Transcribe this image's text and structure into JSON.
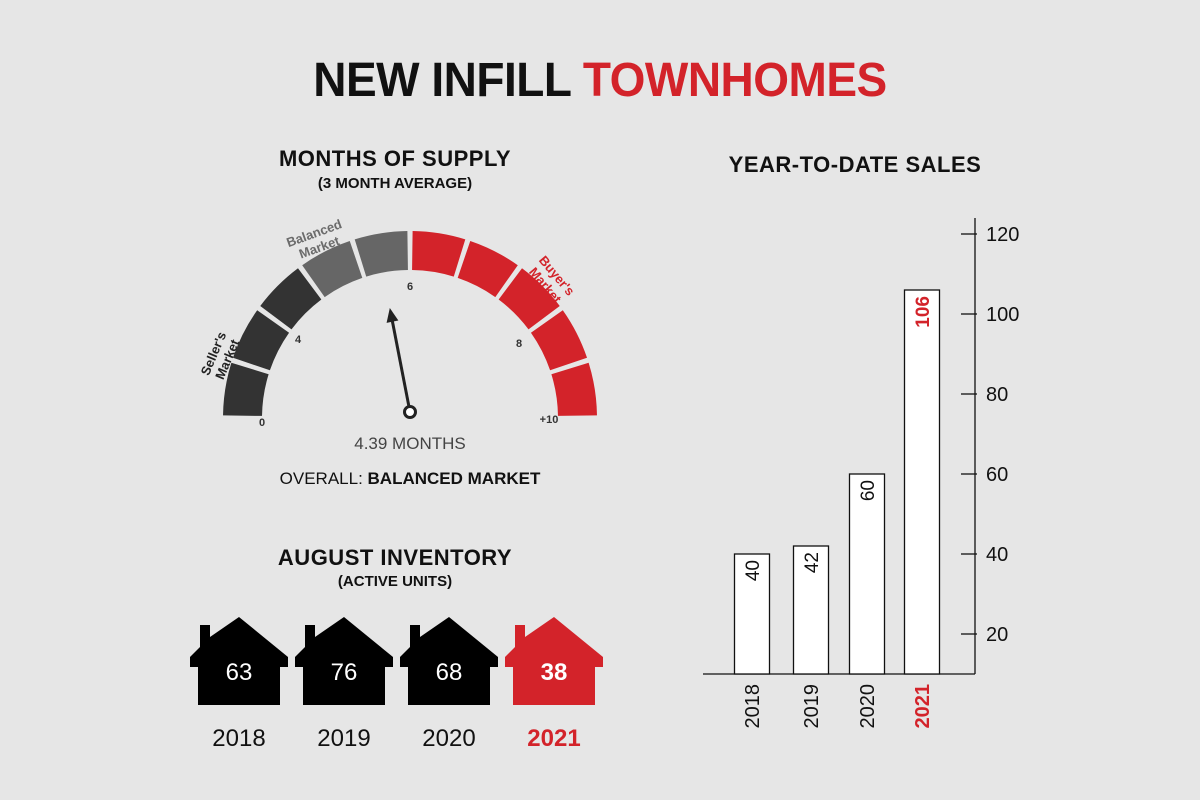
{
  "title": {
    "part1": "NEW INFILL",
    "part2": "TOWNHOMES"
  },
  "colors": {
    "red": "#d3232a",
    "dark": "#333333",
    "mid": "#666666",
    "black": "#000000"
  },
  "supply": {
    "heading": "MONTHS OF SUPPLY",
    "subheading": "(3 MONTH AVERAGE)",
    "labels": {
      "sellers": [
        "Seller's",
        "Market"
      ],
      "balanced": [
        "Balanced",
        "Market"
      ],
      "buyers": [
        "Buyer's",
        "Market"
      ]
    },
    "ticks": [
      "0",
      "4",
      "6",
      "8",
      "+10"
    ],
    "value": 4.39,
    "value_text": "4.39 MONTHS",
    "overall_label": "OVERALL:",
    "overall_value": "BALANCED MARKET"
  },
  "inventory": {
    "heading": "AUGUST INVENTORY",
    "subheading": "(ACTIVE UNITS)",
    "items": [
      {
        "year": "2018",
        "value": "63",
        "highlight": false
      },
      {
        "year": "2019",
        "value": "76",
        "highlight": false
      },
      {
        "year": "2020",
        "value": "68",
        "highlight": false
      },
      {
        "year": "2021",
        "value": "38",
        "highlight": true
      }
    ]
  },
  "chart_data": {
    "type": "bar",
    "title": "YEAR-TO-DATE SALES",
    "categories": [
      "2018",
      "2019",
      "2020",
      "2021"
    ],
    "values": [
      40,
      42,
      60,
      106
    ],
    "highlight": "2021",
    "ylim": [
      10,
      125
    ],
    "yticks": [
      20,
      40,
      60,
      80,
      100,
      120
    ],
    "axis_side": "right"
  }
}
